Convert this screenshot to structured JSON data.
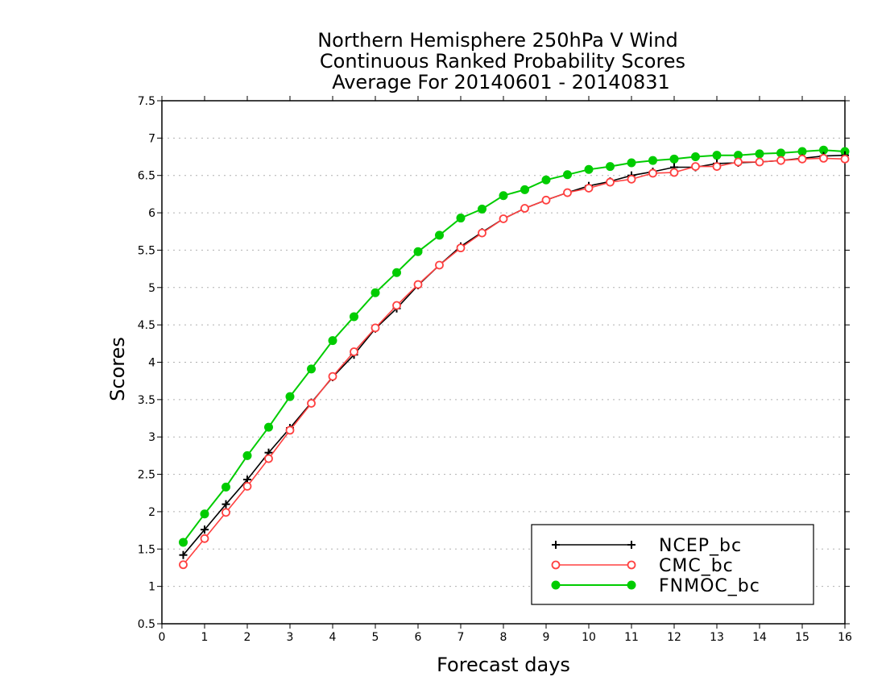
{
  "chart_data": {
    "type": "line",
    "title_lines": [
      "Northern Hemisphere 250hPa V Wind",
      "Continuous Ranked Probability Scores",
      "Average For 20140601 - 20140831"
    ],
    "xlabel": "Forecast days",
    "ylabel": "Scores",
    "xlim": [
      0,
      16
    ],
    "ylim": [
      0.5,
      7.5
    ],
    "x_ticks": [
      "0",
      "1",
      "2",
      "3",
      "4",
      "5",
      "6",
      "7",
      "8",
      "9",
      "10",
      "11",
      "12",
      "13",
      "14",
      "15",
      "16"
    ],
    "y_ticks": [
      "0.5",
      "1",
      "1.5",
      "2",
      "2.5",
      "3",
      "3.5",
      "4",
      "4.5",
      "5",
      "5.5",
      "6",
      "6.5",
      "7",
      "7.5"
    ],
    "grid": true,
    "legend_position": "bottom-right",
    "x": [
      0.5,
      1,
      1.5,
      2,
      2.5,
      3,
      3.5,
      4,
      4.5,
      5,
      5.5,
      6,
      6.5,
      7,
      7.5,
      8,
      8.5,
      9,
      9.5,
      10,
      10.5,
      11,
      11.5,
      12,
      12.5,
      13,
      13.5,
      14,
      14.5,
      15,
      15.5,
      16
    ],
    "series": [
      {
        "name": "NCEP_bc",
        "color": "#000000",
        "marker": "plus",
        "values": [
          1.42,
          1.76,
          2.1,
          2.43,
          2.79,
          3.12,
          3.46,
          3.8,
          4.1,
          4.45,
          4.72,
          5.03,
          5.3,
          5.55,
          5.74,
          5.92,
          6.06,
          6.17,
          6.27,
          6.36,
          6.42,
          6.5,
          6.55,
          6.61,
          6.61,
          6.66,
          6.67,
          6.68,
          6.7,
          6.73,
          6.76,
          6.77
        ]
      },
      {
        "name": "CMC_bc",
        "color": "#ff4040",
        "marker": "open-circle",
        "values": [
          1.29,
          1.64,
          1.99,
          2.34,
          2.71,
          3.09,
          3.45,
          3.81,
          4.14,
          4.46,
          4.76,
          5.04,
          5.3,
          5.53,
          5.73,
          5.92,
          6.06,
          6.17,
          6.27,
          6.33,
          6.41,
          6.45,
          6.53,
          6.54,
          6.62,
          6.62,
          6.68,
          6.68,
          6.7,
          6.72,
          6.73,
          6.72
        ]
      },
      {
        "name": "FNMOC_bc",
        "color": "#00cc00",
        "marker": "filled-circle",
        "values": [
          1.59,
          1.97,
          2.33,
          2.75,
          3.13,
          3.54,
          3.91,
          4.29,
          4.61,
          4.93,
          5.2,
          5.48,
          5.7,
          5.93,
          6.05,
          6.23,
          6.31,
          6.44,
          6.51,
          6.58,
          6.62,
          6.67,
          6.7,
          6.72,
          6.75,
          6.77,
          6.77,
          6.79,
          6.8,
          6.82,
          6.84,
          6.82
        ]
      }
    ]
  }
}
